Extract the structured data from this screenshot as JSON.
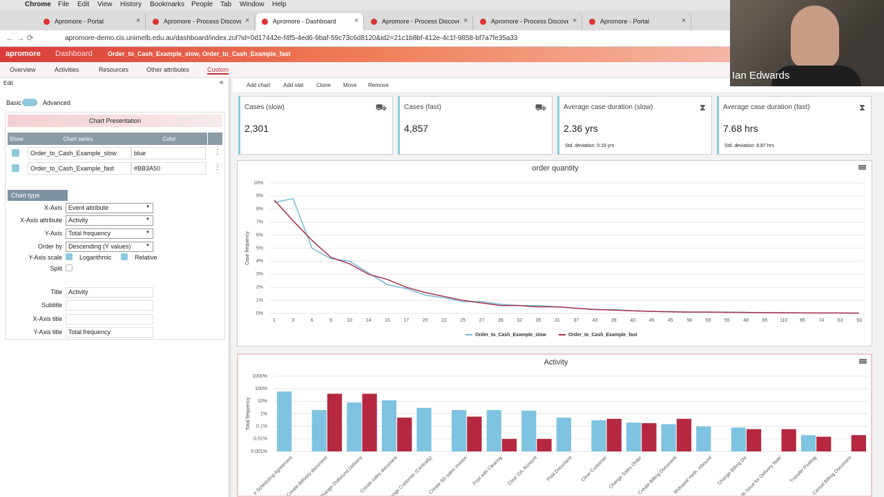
{
  "browser": {
    "menu": [
      "Chrome",
      "File",
      "Edit",
      "View",
      "History",
      "Bookmarks",
      "People",
      "Tab",
      "Window",
      "Help"
    ],
    "tabs": [
      "Apromore - Portal",
      "Apromore - Process Discovere",
      "Apromore - Dashboard",
      "Apromore - Process Discovere",
      "Apromore - Process Discovere",
      "Apromore - Portal"
    ],
    "active_tab": 2,
    "url": "apromore-demo.cis.unimelb.edu.au/dashboard/index.zul?id=0d17442e-f4f5-4ed6-9baf-59c73c6d8120&id2=21c1b8bf-412e-4c1f-9858-bf7a7fe35a33"
  },
  "app": {
    "logo": "apromore",
    "section": "Dashboard",
    "breadcrumb": "Order_to_Cash_Example_slow, Order_to_Cash_Example_fast",
    "nav": [
      "Overview",
      "Activities",
      "Resources",
      "Other attributes",
      "Custom"
    ],
    "active_nav": 4
  },
  "edit": {
    "title": "Edit",
    "collapse": "«",
    "mode_basic": "Basic",
    "mode_advanced": "Advanced",
    "section": "Chart Presentation",
    "table": {
      "headers": [
        "Show",
        "Chart series",
        "Color"
      ],
      "rows": [
        [
          "Order_to_Cash_Example_slow",
          "blue"
        ],
        [
          "Order_to_Cash_Example_fast",
          "#BB3A50"
        ]
      ]
    },
    "chart_type": "Chart type",
    "form": [
      {
        "label": "X-Axis",
        "kind": "select",
        "value": "Event attribute"
      },
      {
        "label": "X-Axis attribute",
        "kind": "select",
        "value": "Activity"
      },
      {
        "label": "Y-Axis",
        "kind": "select",
        "value": "Total frequency"
      },
      {
        "label": "Order by",
        "kind": "select",
        "value": "Descending (Y values)"
      },
      {
        "label": "Y-Axis scale",
        "kind": "check",
        "options": [
          {
            "label": "Logarithmic",
            "checked": true
          },
          {
            "label": "Relative",
            "checked": true
          }
        ]
      },
      {
        "label": "Split",
        "kind": "check",
        "options": [
          {
            "checked": false
          }
        ]
      },
      {
        "label": "Title",
        "kind": "text",
        "value": "Activity"
      },
      {
        "label": "Subtitle",
        "kind": "text"
      },
      {
        "label": "X-Axis title",
        "kind": "text"
      },
      {
        "label": "Y-Axis title",
        "kind": "text",
        "value": "Total frequency"
      }
    ]
  },
  "toolbar": [
    "Add chart",
    "Add stat",
    "Clone",
    "Move",
    "Remove"
  ],
  "stats": [
    {
      "label": "Cases (slow)",
      "value": "2,301"
    },
    {
      "label": "Cases (fast)",
      "value": "4,857"
    },
    {
      "label": "Average case duration (slow)",
      "value": "2.36 yrs",
      "note": "Std. deviation: 0.19 yrs"
    },
    {
      "label": "Average case duration (fast)",
      "value": "7.68 hrs",
      "note": "Std. deviation: 8.87 hrs"
    }
  ],
  "video": {
    "name": "Ian Edwards"
  },
  "chart_data": [
    {
      "type": "line",
      "title": "order quantity",
      "y_label": "Case frequency",
      "legend": "bottom",
      "categories": [
        "1",
        "3",
        "6",
        "9",
        "10",
        "14",
        "15",
        "17",
        "20",
        "22",
        "25",
        "27",
        "28",
        "32",
        "35",
        "31",
        "37",
        "43",
        "39",
        "40",
        "46",
        "45",
        "58",
        "59",
        "55",
        "48",
        "65",
        "110",
        "86",
        "74",
        "63",
        "93"
      ],
      "ylim": [
        0,
        10
      ],
      "yticks": [
        {
          "value": 0,
          "label": "0%"
        },
        {
          "value": 1,
          "label": "1%"
        },
        {
          "value": 2,
          "label": "2%"
        },
        {
          "value": 3,
          "label": "3%"
        },
        {
          "value": 4,
          "label": "4%"
        },
        {
          "value": 5,
          "label": "5%"
        },
        {
          "value": 6,
          "label": "6%"
        },
        {
          "value": 7,
          "label": "7%"
        },
        {
          "value": 8,
          "label": "8%"
        },
        {
          "value": 9,
          "label": "9%"
        },
        {
          "value": 10,
          "label": "10%"
        }
      ],
      "grid": true,
      "series": [
        {
          "name": "Order_to_Cash_Example_slow",
          "color": "#6fb9d9",
          "values": [
            8.5,
            8.8,
            5.0,
            4.2,
            4.0,
            3.1,
            2.2,
            1.9,
            1.4,
            1.2,
            0.9,
            0.9,
            0.7,
            0.6,
            0.6,
            0.5,
            0.4,
            0.3,
            0.3,
            0.2,
            0.15,
            0.15,
            0.1,
            0.1,
            0.1,
            0.08,
            0.06,
            0.05,
            0.04,
            0.03,
            0.03,
            0.02
          ]
        },
        {
          "name": "Order_to_Cash_Example_fast",
          "color": "#a8324a",
          "values": [
            8.7,
            7.1,
            5.6,
            4.3,
            3.8,
            3.0,
            2.6,
            2.0,
            1.6,
            1.3,
            1.0,
            0.8,
            0.6,
            0.6,
            0.5,
            0.5,
            0.4,
            0.3,
            0.25,
            0.2,
            0.15,
            0.12,
            0.1,
            0.1,
            0.08,
            0.07,
            0.06,
            0.05,
            0.04,
            0.03,
            0.03,
            0.02
          ]
        }
      ]
    },
    {
      "type": "bar",
      "title": "Activity",
      "y_label": "Total frequency",
      "log_scale": true,
      "categories": [
        "e Scheduling Agreement",
        "Create delivery document",
        "Change Outbound Delivery",
        "Create sales document",
        "ange Customer (Centrally)",
        "Create SD sales invoice",
        "Post with Clearing",
        "Clear G/L Account",
        "Post Document",
        "Clear Customer",
        "Change Sales Order",
        "Create Billing Document",
        "ithdrawal meth. inbound",
        "Change Billing Do",
        "ds Issue for Delivery Note",
        "Transfer Posting",
        "Cancel Billing Document"
      ],
      "ylim": [
        0.001,
        1000
      ],
      "yticks": [
        {
          "value": 0.001,
          "label": "0.001%"
        },
        {
          "value": 0.01,
          "label": "0.01%"
        },
        {
          "value": 0.1,
          "label": "0.1%"
        },
        {
          "value": 1,
          "label": "1%"
        },
        {
          "value": 10,
          "label": "10%"
        },
        {
          "value": 100,
          "label": "100%"
        },
        {
          "value": 1000,
          "label": "1000%"
        }
      ],
      "grid": true,
      "series": [
        {
          "name": "Order_to_Cash_Example_slow",
          "color": "#7ec3e0",
          "values": [
            60,
            2,
            8,
            12,
            3,
            2,
            2,
            1.8,
            0.5,
            0.3,
            0.2,
            0.15,
            0.1,
            0.08,
            null,
            0.02,
            null
          ]
        },
        {
          "name": "Order_to_Cash_Example_fast",
          "color": "#b5283f",
          "values": [
            null,
            40,
            40,
            0.5,
            null,
            0.6,
            0.01,
            0.01,
            null,
            0.4,
            0.18,
            0.4,
            null,
            0.06,
            0.06,
            0.015,
            0.02
          ]
        }
      ]
    }
  ]
}
